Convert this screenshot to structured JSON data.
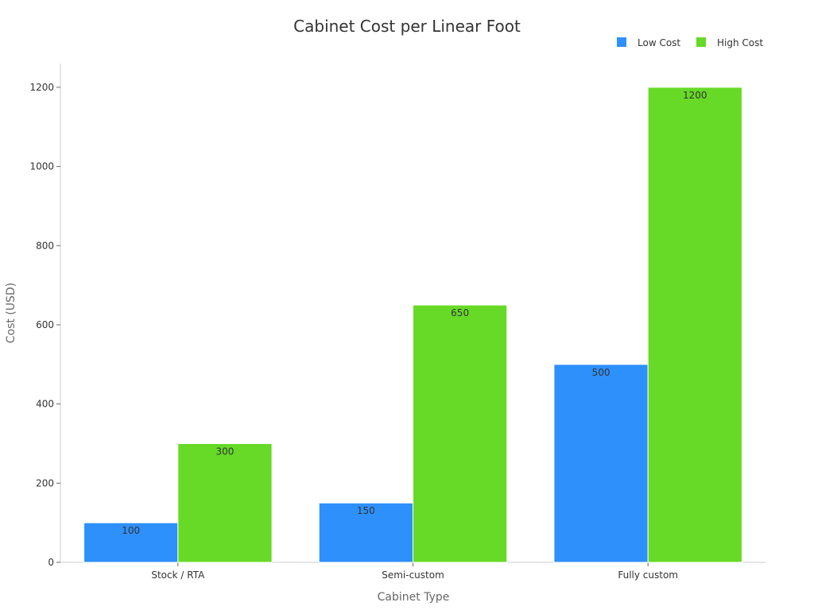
{
  "chart_data": {
    "type": "bar",
    "title": "Cabinet Cost per Linear Foot",
    "xlabel": "Cabinet Type",
    "ylabel": "Cost (USD)",
    "categories": [
      "Stock / RTA",
      "Semi-custom",
      "Fully custom"
    ],
    "series": [
      {
        "name": "Low Cost",
        "values": [
          100,
          150,
          500
        ],
        "color": "#2e90fa"
      },
      {
        "name": "High Cost",
        "values": [
          300,
          650,
          1200
        ],
        "color": "#66da26"
      }
    ],
    "ylim": [
      0,
      1260
    ],
    "yticks": [
      0,
      200,
      400,
      600,
      800,
      1000,
      1200
    ],
    "grid": false,
    "legend_position": "top-right"
  }
}
